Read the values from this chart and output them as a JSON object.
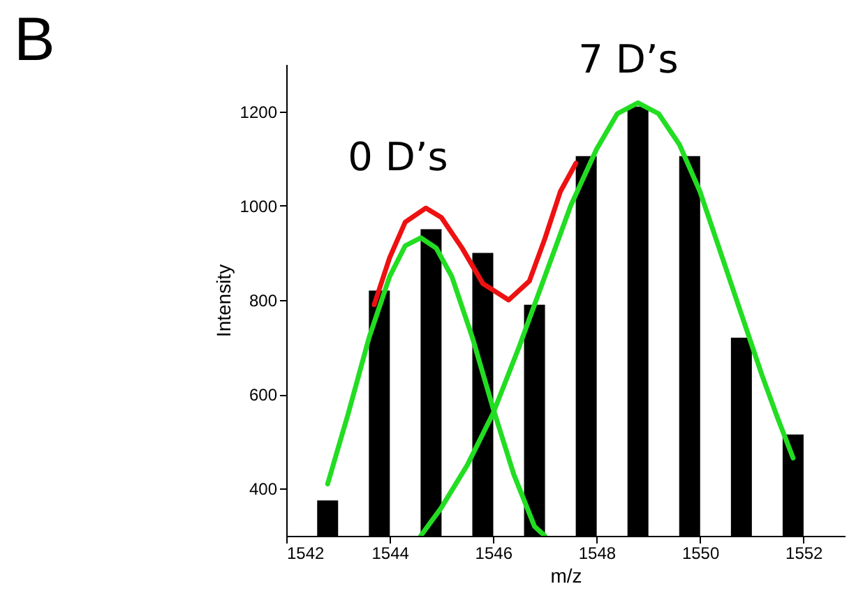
{
  "chart_data": {
    "type": "bar",
    "title": "B",
    "xlabel": "m/z",
    "ylabel": "Intensity",
    "xlim": [
      1542,
      1552.8
    ],
    "ylim": [
      300,
      1300
    ],
    "xticks": [
      1542,
      1544,
      1546,
      1548,
      1550,
      1552
    ],
    "yticks": [
      400,
      600,
      800,
      1000,
      1200
    ],
    "grid": false,
    "marker": "none",
    "line_style": "solid",
    "annotations": [
      "0 D’s",
      "7 D’s"
    ],
    "series": [
      {
        "color": "#000000",
        "x": [
          1542.8,
          1543.8,
          1544.8,
          1545.8,
          1546.8,
          1547.8,
          1548.8,
          1549.8,
          1550.8,
          1551.8
        ],
        "values": [
          375,
          820,
          950,
          900,
          790,
          1105,
          1210,
          1105,
          720,
          515
        ]
      },
      {
        "type": "line",
        "color": "#ee1111",
        "x": [
          1543.7,
          1544.0,
          1544.3,
          1544.7,
          1545.0,
          1545.4,
          1545.8,
          1546.3,
          1546.7,
          1547.0,
          1547.3,
          1547.6
        ],
        "values": [
          790,
          890,
          965,
          995,
          975,
          910,
          835,
          800,
          840,
          930,
          1030,
          1090
        ]
      },
      {
        "type": "line",
        "color": "#22dd22",
        "x": [
          1542.8,
          1543.2,
          1543.6,
          1544.0,
          1544.3,
          1544.6,
          1544.9,
          1545.2,
          1545.6,
          1546.0,
          1546.4,
          1546.8,
          1547.0
        ],
        "values": [
          410,
          560,
          720,
          850,
          915,
          932,
          910,
          850,
          720,
          570,
          430,
          320,
          300
        ]
      },
      {
        "type": "line",
        "color": "#22dd22",
        "x": [
          1544.6,
          1545.0,
          1545.5,
          1546.0,
          1546.5,
          1547.0,
          1547.5,
          1548.0,
          1548.4,
          1548.8,
          1549.2,
          1549.6,
          1550.0,
          1550.4,
          1550.8,
          1551.2,
          1551.5,
          1551.8
        ],
        "values": [
          300,
          360,
          450,
          560,
          700,
          850,
          1000,
          1120,
          1195,
          1218,
          1195,
          1130,
          1030,
          900,
          770,
          640,
          550,
          465
        ]
      }
    ]
  }
}
